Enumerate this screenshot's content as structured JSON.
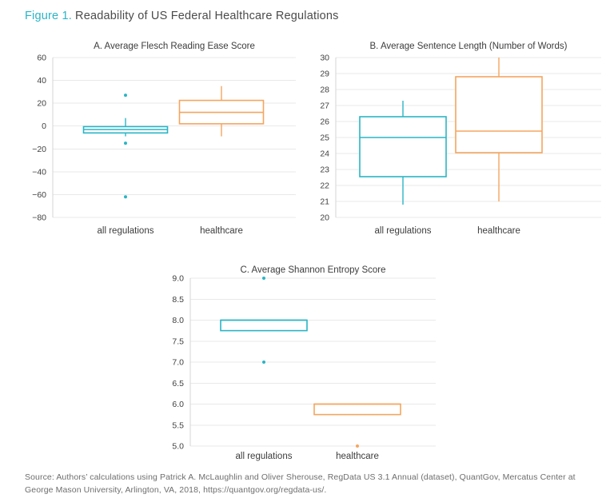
{
  "figure": {
    "label": "Figure 1.",
    "title": "Readability of US Federal Healthcare Regulations"
  },
  "colors": {
    "teal": "#2AB5C5",
    "orange": "#F5A55F",
    "grid": "#E9E9E9",
    "spine": "#D6D6D6",
    "box_fill": "#FFFFFF"
  },
  "chart_data": [
    {
      "type": "boxplot",
      "panel": "A",
      "title": "A. Average Flesch Reading Ease Score",
      "categories": [
        "all regulations",
        "healthcare"
      ],
      "ylim": [
        -80,
        60
      ],
      "grid": true,
      "yticks": [
        {
          "v": 60,
          "label": "60"
        },
        {
          "v": 40,
          "label": "40"
        },
        {
          "v": 20,
          "label": "20"
        },
        {
          "v": 0,
          "label": "0"
        },
        {
          "v": -20,
          "label": "−20"
        },
        {
          "v": -40,
          "label": "−40"
        },
        {
          "v": -60,
          "label": "−60"
        },
        {
          "v": -80,
          "label": "−80"
        }
      ],
      "series": [
        {
          "name": "all regulations",
          "color": "teal",
          "whisker_low": -9,
          "q1": -6,
          "median": -3,
          "q3": -0.5,
          "whisker_high": 7,
          "outliers": [
            27,
            -15,
            -62
          ]
        },
        {
          "name": "healthcare",
          "color": "orange",
          "whisker_low": -9,
          "q1": 2,
          "median": 12,
          "q3": 22.5,
          "whisker_high": 35,
          "outliers": []
        }
      ]
    },
    {
      "type": "boxplot",
      "panel": "B",
      "title": "B. Average Sentence Length (Number of Words)",
      "categories": [
        "all regulations",
        "healthcare"
      ],
      "ylim": [
        20,
        30
      ],
      "grid": true,
      "yticks": [
        {
          "v": 30,
          "label": "30"
        },
        {
          "v": 29,
          "label": "29"
        },
        {
          "v": 28,
          "label": "28"
        },
        {
          "v": 27,
          "label": "27"
        },
        {
          "v": 26,
          "label": "26"
        },
        {
          "v": 25,
          "label": "25"
        },
        {
          "v": 24,
          "label": "24"
        },
        {
          "v": 23,
          "label": "23"
        },
        {
          "v": 22,
          "label": "22"
        },
        {
          "v": 21,
          "label": "21"
        },
        {
          "v": 20,
          "label": "20"
        }
      ],
      "series": [
        {
          "name": "all regulations",
          "color": "teal",
          "whisker_low": 20.8,
          "q1": 22.55,
          "median": 25.0,
          "q3": 26.3,
          "whisker_high": 27.3,
          "outliers": []
        },
        {
          "name": "healthcare",
          "color": "orange",
          "whisker_low": 21.0,
          "q1": 24.05,
          "median": 25.4,
          "q3": 28.8,
          "whisker_high": 30.0,
          "outliers": []
        }
      ]
    },
    {
      "type": "boxplot",
      "panel": "C",
      "title": "C. Average Shannon Entropy Score",
      "categories": [
        "all regulations",
        "healthcare"
      ],
      "ylim": [
        5,
        9
      ],
      "grid": true,
      "yticks": [
        {
          "v": 9.0,
          "label": "9.0"
        },
        {
          "v": 8.5,
          "label": "8.5"
        },
        {
          "v": 8.0,
          "label": "8.0"
        },
        {
          "v": 7.5,
          "label": "7.5"
        },
        {
          "v": 7.0,
          "label": "7.0"
        },
        {
          "v": 6.5,
          "label": "6.5"
        },
        {
          "v": 6.0,
          "label": "6.0"
        },
        {
          "v": 5.5,
          "label": "5.5"
        },
        {
          "v": 5.0,
          "label": "5.0"
        }
      ],
      "series": [
        {
          "name": "all regulations",
          "color": "teal",
          "whisker_low": 7.75,
          "q1": 7.75,
          "median": 8.0,
          "q3": 8.0,
          "whisker_high": 8.0,
          "outliers": [
            9.0,
            7.0
          ]
        },
        {
          "name": "healthcare",
          "color": "orange",
          "whisker_low": 5.75,
          "q1": 5.75,
          "median": 6.0,
          "q3": 6.0,
          "whisker_high": 6.0,
          "outliers": [
            5.0
          ]
        }
      ]
    }
  ],
  "source": {
    "lines": [
      "Source: Authors’ calculations using Patrick A. McLaughlin and Oliver Sherouse, RegData US 3.1 Annual (dataset), QuantGov, Mercatus Center at",
      "George Mason University, Arlington, VA, 2018, https://quantgov.org/regdata-us/."
    ]
  }
}
